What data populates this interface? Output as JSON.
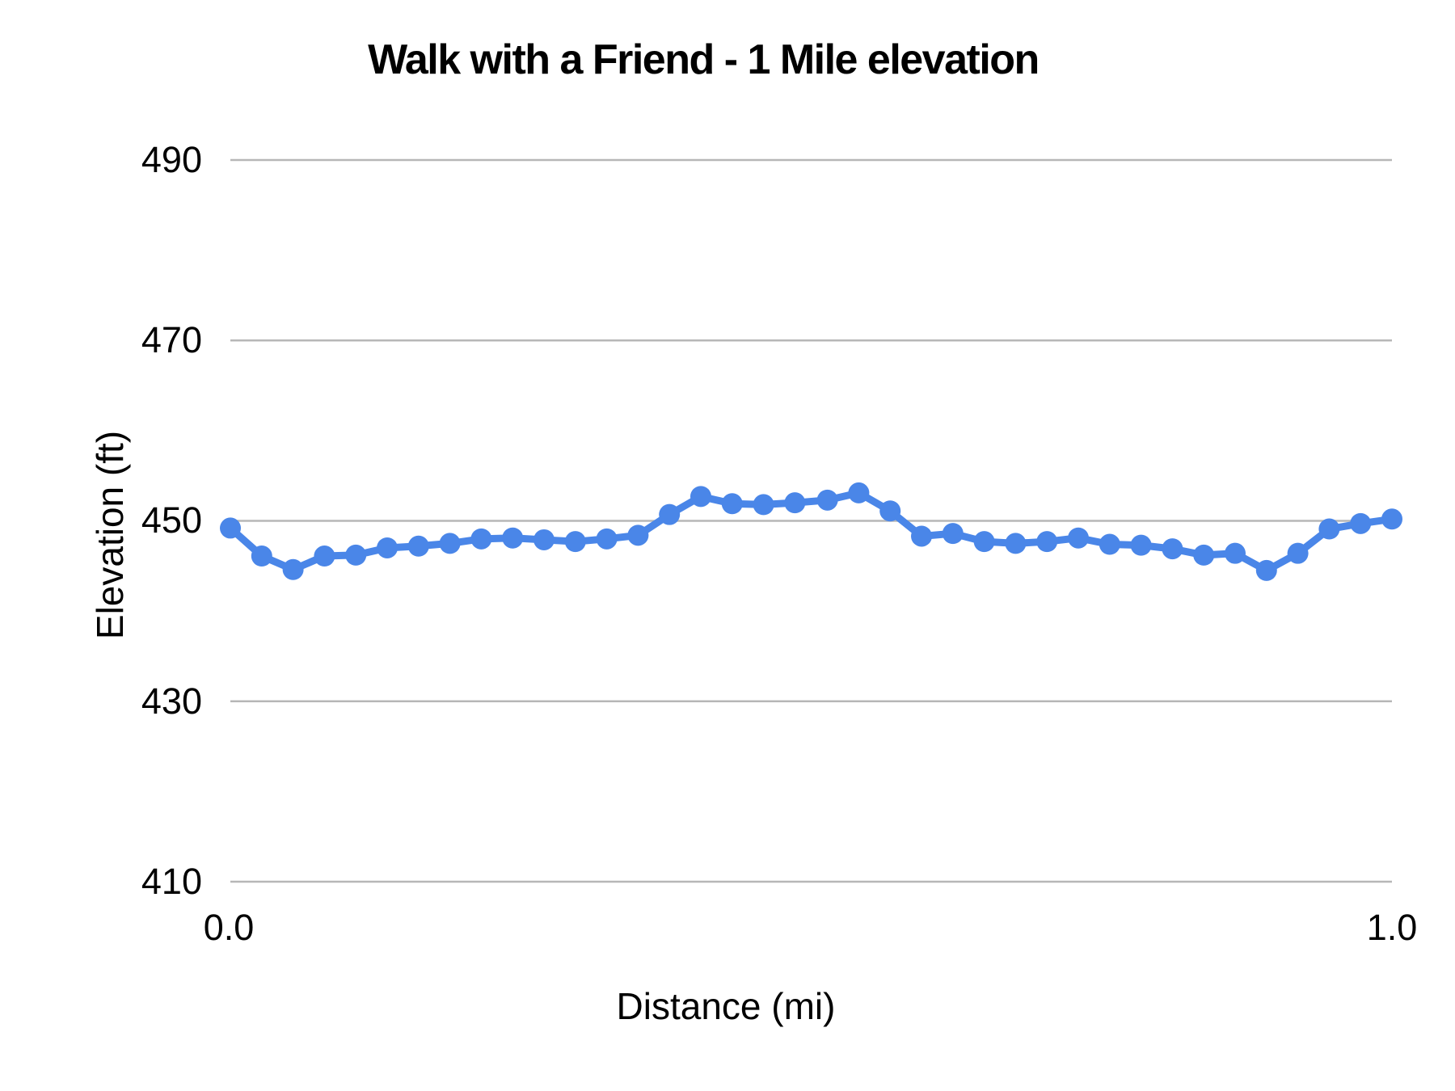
{
  "chart_data": {
    "type": "line",
    "title": "Walk with a Friend - 1 Mile elevation",
    "xlabel": "Distance (mi)",
    "ylabel": "Elevation (ft)",
    "xlim": [
      0.0,
      1.0
    ],
    "ylim": [
      410,
      490
    ],
    "xticks": [
      0.0,
      1.0
    ],
    "xtick_labels": [
      "0.0",
      "1.0"
    ],
    "yticks": [
      490,
      470,
      450,
      430,
      410
    ],
    "ytick_labels": [
      "490",
      "470",
      "450",
      "430",
      "410"
    ],
    "grid": true,
    "legend": "none",
    "line_color": "#4a86e8",
    "gridline_color": "#b7b7b7",
    "marker": "circle",
    "x": [
      0.0,
      0.027,
      0.054,
      0.081,
      0.108,
      0.135,
      0.162,
      0.189,
      0.216,
      0.243,
      0.27,
      0.297,
      0.324,
      0.351,
      0.378,
      0.405,
      0.432,
      0.459,
      0.486,
      0.514,
      0.541,
      0.568,
      0.595,
      0.622,
      0.649,
      0.676,
      0.703,
      0.73,
      0.757,
      0.784,
      0.811,
      0.838,
      0.865,
      0.892,
      0.919,
      0.946,
      0.973,
      1.0
    ],
    "values": [
      449.2,
      446.1,
      444.6,
      446.1,
      446.2,
      447.0,
      447.2,
      447.5,
      448.0,
      448.1,
      447.9,
      447.7,
      448.0,
      448.4,
      450.7,
      452.7,
      451.9,
      451.8,
      452.0,
      452.3,
      453.1,
      451.1,
      448.3,
      448.6,
      447.7,
      447.5,
      447.7,
      448.1,
      447.4,
      447.3,
      446.9,
      446.2,
      446.4,
      444.5,
      446.4,
      449.1,
      449.7,
      450.2
    ]
  }
}
